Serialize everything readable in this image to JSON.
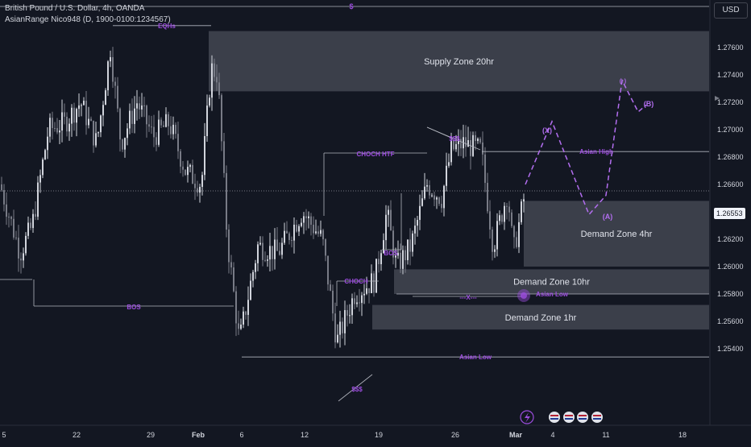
{
  "header": {
    "symbol_line": "British Pound / U.S. Dollar, 4h, OANDA",
    "indicator_line": "AsianRange Nico948 (D, 1900-0100:1234567)"
  },
  "currency_button": "USD",
  "current_price": "1.26553",
  "colors": {
    "background": "#131722",
    "candle": "#d1d4dc",
    "zone": "#5d606b",
    "annotation": "#9c4dde",
    "projection": "#b36ef0",
    "line": "#b2b5be"
  },
  "chart_data": {
    "type": "candlestick",
    "symbol": "GBPUSD",
    "timeframe": "4h",
    "x_ticks": [
      "5",
      "22",
      "29",
      "Feb",
      "6",
      "12",
      "19",
      "26",
      "Mar",
      "4",
      "11",
      "18"
    ],
    "y_ticks": [
      "1.27600",
      "1.27400",
      "1.27200",
      "1.27000",
      "1.26800",
      "1.26600",
      "1.26400",
      "1.26200",
      "1.26000",
      "1.25800",
      "1.25600",
      "1.25400"
    ],
    "ylim": [
      1.2525,
      1.2792
    ],
    "zones": [
      {
        "label": "Supply Zone 20hr",
        "low": 1.2728,
        "high": 1.2772
      },
      {
        "label": "Demand Zone 4hr",
        "low": 1.26,
        "high": 1.2648
      },
      {
        "label": "Demand Zone 10hr",
        "low": 1.258,
        "high": 1.2598
      },
      {
        "label": "Demand Zone 1hr",
        "low": 1.2554,
        "high": 1.2572
      }
    ],
    "levels": [
      {
        "label": "Asian High",
        "price": 1.2684
      },
      {
        "label": "Asian Low",
        "price": 1.258
      },
      {
        "label": "Asian Low",
        "price": 1.2534
      },
      {
        "label": "EQHs",
        "price": 1.2776
      },
      {
        "label": "BOS",
        "price": 1.2597
      },
      {
        "label": "CHOCH HTF",
        "price": 1.2699
      },
      {
        "label": "CHOCH",
        "price": 1.2618
      },
      {
        "label": "BOS",
        "price": 1.2627
      },
      {
        "label": "$",
        "price": 1.279
      }
    ],
    "annotations": [
      "$$$",
      "$$$",
      "---X---",
      "(X)",
      "(A)",
      "(B)"
    ],
    "projection": [
      {
        "label": "",
        "price": 1.266
      },
      {
        "label": "(X)",
        "price": 1.2706
      },
      {
        "label": "",
        "price": 1.2638
      },
      {
        "label": "(A)",
        "price": 1.2652
      },
      {
        "label": "",
        "price": 1.2736
      },
      {
        "label": "",
        "price": 1.2713
      },
      {
        "label": "(B)",
        "price": 1.2718
      }
    ]
  }
}
